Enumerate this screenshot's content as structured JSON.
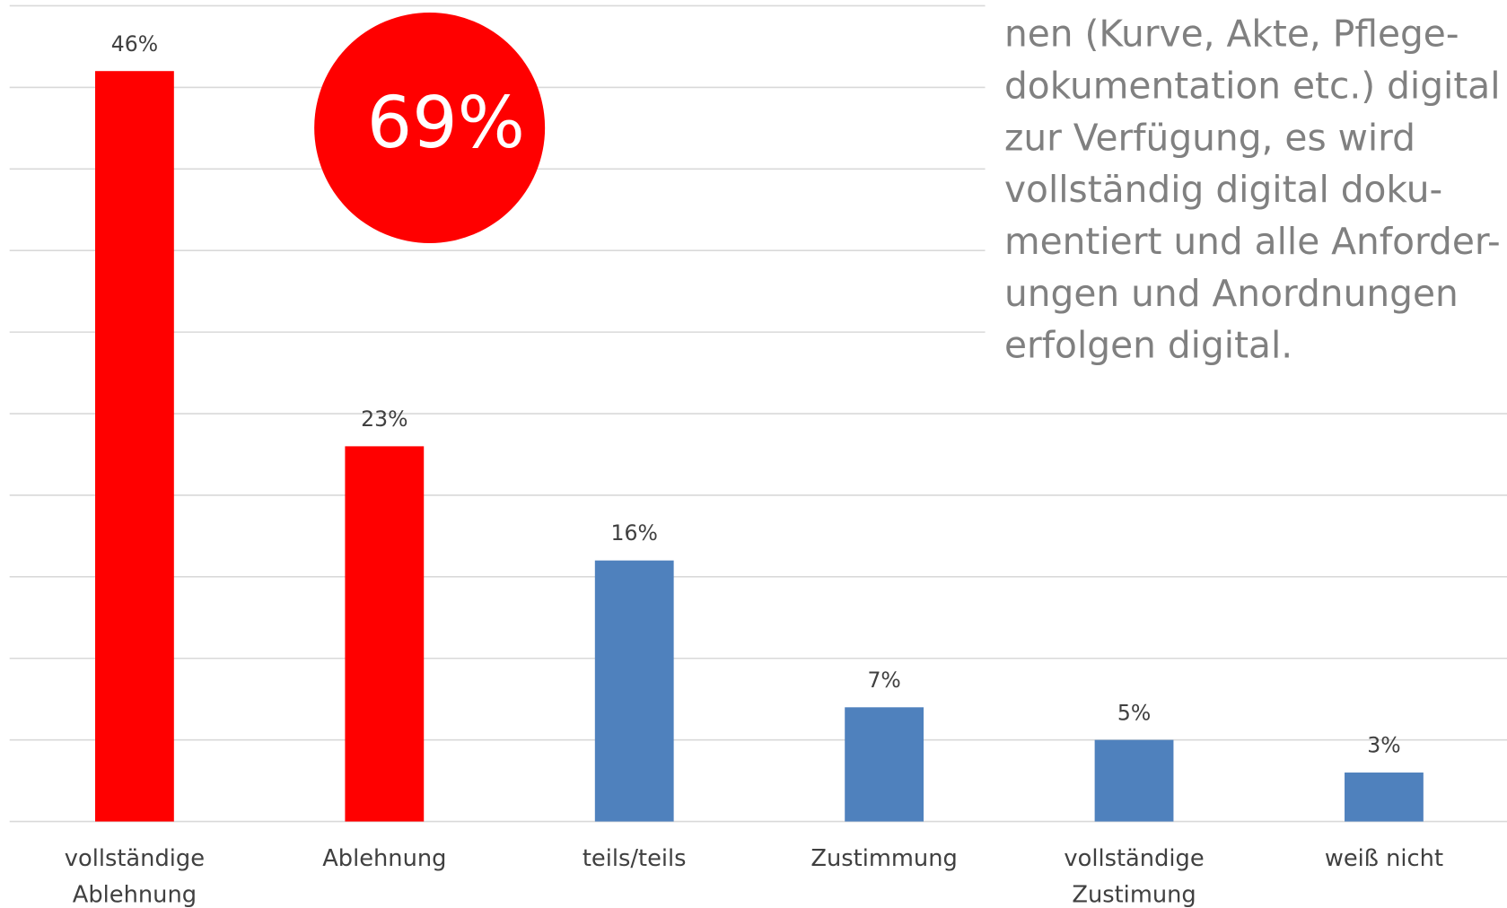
{
  "chart_data": {
    "type": "bar",
    "categories": [
      [
        "vollständige",
        "Ablehnung"
      ],
      [
        "Ablehnung"
      ],
      [
        "teils/teils"
      ],
      [
        "Zustimmung"
      ],
      [
        "vollständige",
        "Zustimung"
      ],
      [
        "weiß nicht"
      ]
    ],
    "values": [
      46,
      23,
      16,
      7,
      5,
      3
    ],
    "value_labels": [
      "46%",
      "23%",
      "16%",
      "7%",
      "5%",
      "3%"
    ],
    "colors": [
      "#ff0000",
      "#ff0000",
      "#4f81bd",
      "#4f81bd",
      "#4f81bd",
      "#4f81bd"
    ],
    "ylim": [
      0,
      50
    ],
    "yticks": [
      0,
      5,
      10,
      15,
      20,
      25,
      30,
      35,
      40,
      45,
      50
    ],
    "grid": true,
    "annotation": "69%",
    "annotation_color": "#ff0000",
    "text_lines": [
      "nen (Kurve, Akte, Pflege-",
      "dokumentation etc.) digital",
      "zur Verfügung, es wird",
      "vollständig digital doku-",
      "mentiert und alle Anforder-",
      "ungen und Anordnungen",
      "erfolgen digital."
    ]
  }
}
